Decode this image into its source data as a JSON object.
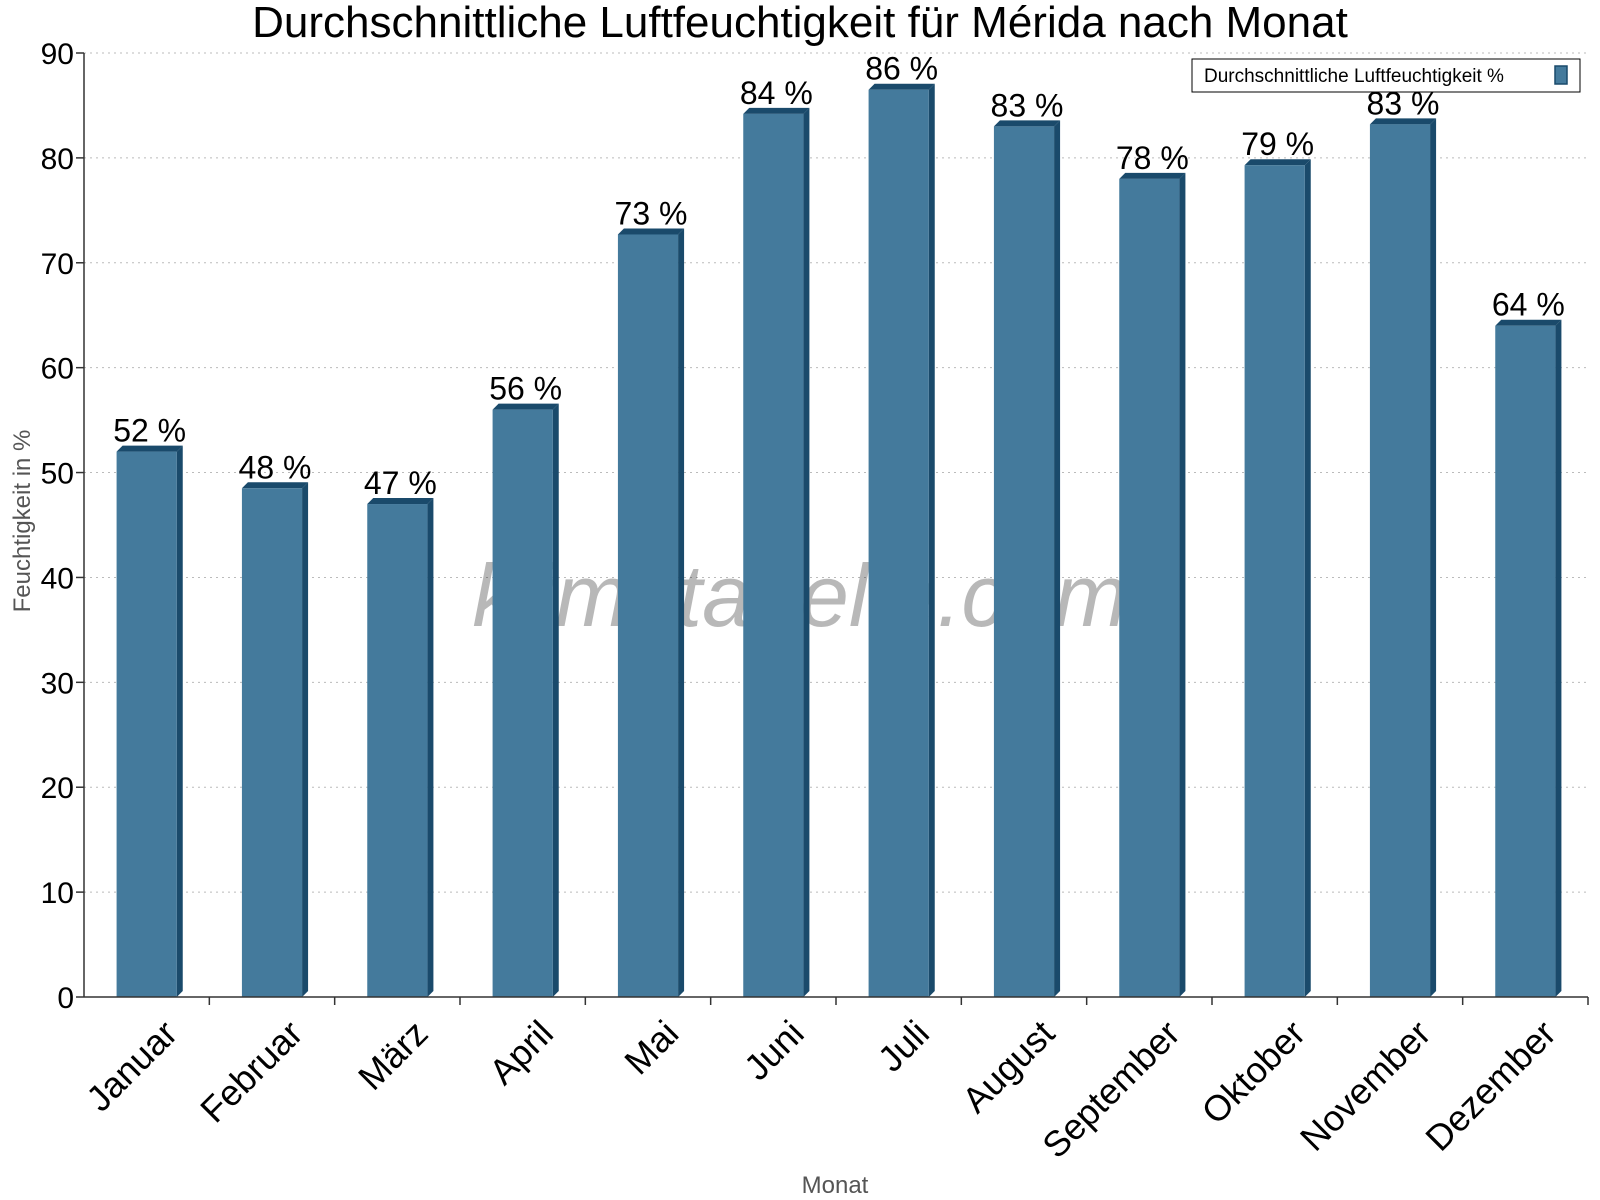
{
  "chart_data": {
    "type": "bar",
    "title": "Durchschnittliche Luftfeuchtigkeit für Mérida nach Monat",
    "xlabel": "Monat",
    "ylabel": "Feuchtigkeit in %",
    "ylim": [
      0,
      90
    ],
    "yticks": [
      "0",
      "10",
      "20",
      "30",
      "40",
      "50",
      "60",
      "70",
      "80",
      "90"
    ],
    "grid": true,
    "legend_position": "top-right",
    "categories": [
      "Januar",
      "Februar",
      "März",
      "April",
      "Mai",
      "Juni",
      "Juli",
      "August",
      "September",
      "Oktober",
      "November",
      "Dezember"
    ],
    "series": [
      {
        "name": "Durchschnittliche Luftfeuchtigkeit %",
        "color": "#447a9c",
        "values": [
          52,
          48.5,
          47,
          56,
          72.7,
          84.2,
          86.5,
          83,
          78,
          79.3,
          83.2,
          64
        ],
        "labels": [
          "52 %",
          "48 %",
          "47 %",
          "56 %",
          "73 %",
          "84 %",
          "86 %",
          "83 %",
          "78 %",
          "79 %",
          "83 %",
          "64 %"
        ]
      }
    ],
    "watermark": "klimatabelle.com"
  },
  "colors": {
    "bar_face": "#447a9c",
    "bar_side": "#1a4a6b",
    "grid": "#bbbbbb"
  }
}
